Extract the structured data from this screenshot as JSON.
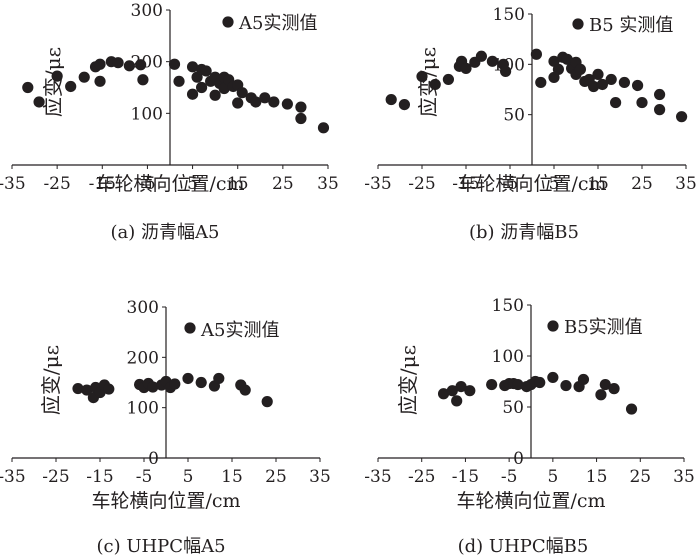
{
  "chart_data": [
    {
      "type": "scatter",
      "caption": "(a) 沥青幅A5",
      "xlabel": "车轮横向位置/cm",
      "ylabel": "应变/με",
      "xlim": [
        -35,
        35
      ],
      "ylim": [
        0,
        300
      ],
      "xticks": [
        -35,
        -25,
        -15,
        -5,
        5,
        15,
        25,
        35
      ],
      "yticks": [
        100,
        200,
        300
      ],
      "grid": false,
      "legend_position": "top-right",
      "series": [
        {
          "name": "A5实测值",
          "points": [
            [
              -31.5,
              150
            ],
            [
              -29,
              122
            ],
            [
              -25,
              172
            ],
            [
              -22,
              152
            ],
            [
              -19,
              170
            ],
            [
              -16.5,
              190
            ],
            [
              -15.5,
              195
            ],
            [
              -15.5,
              162
            ],
            [
              -13,
              200
            ],
            [
              -11.5,
              198
            ],
            [
              -9,
              192
            ],
            [
              -6.5,
              194
            ],
            [
              -6,
              165
            ],
            [
              1,
              195
            ],
            [
              2,
              162
            ],
            [
              5,
              190
            ],
            [
              5,
              137
            ],
            [
              6,
              170
            ],
            [
              7,
              185
            ],
            [
              7,
              150
            ],
            [
              8,
              182
            ],
            [
              9,
              162
            ],
            [
              10,
              170
            ],
            [
              10,
              135
            ],
            [
              11,
              158
            ],
            [
              12,
              170
            ],
            [
              12,
              148
            ],
            [
              13,
              165
            ],
            [
              14,
              152
            ],
            [
              15,
              155
            ],
            [
              15,
              120
            ],
            [
              16,
              140
            ],
            [
              18,
              130
            ],
            [
              19,
              122
            ],
            [
              21,
              130
            ],
            [
              23,
              122
            ],
            [
              26,
              118
            ],
            [
              29,
              112
            ],
            [
              29,
              90
            ],
            [
              34,
              72
            ]
          ]
        }
      ]
    },
    {
      "type": "scatter",
      "caption": "(b) 沥青幅B5",
      "xlabel": "车轮横向位置/cm",
      "ylabel": "应变/με",
      "xlim": [
        -35,
        35
      ],
      "ylim": [
        0,
        150
      ],
      "xticks": [
        -35,
        -25,
        -15,
        -5,
        5,
        15,
        25,
        35
      ],
      "yticks": [
        50,
        100,
        150
      ],
      "grid": false,
      "legend_position": "top-right",
      "series": [
        {
          "name": "B5 实测值",
          "points": [
            [
              -32,
              65
            ],
            [
              -29,
              60
            ],
            [
              -25,
              88
            ],
            [
              -22,
              80
            ],
            [
              -19,
              85
            ],
            [
              -16.5,
              98
            ],
            [
              -16,
              103
            ],
            [
              -15,
              96
            ],
            [
              -13,
              102
            ],
            [
              -11.5,
              108
            ],
            [
              -9,
              103
            ],
            [
              -6.5,
              100
            ],
            [
              -6,
              93
            ],
            [
              1,
              110
            ],
            [
              2,
              82
            ],
            [
              5,
              103
            ],
            [
              5,
              87
            ],
            [
              6,
              95
            ],
            [
              7,
              107
            ],
            [
              8,
              105
            ],
            [
              9,
              96
            ],
            [
              10,
              102
            ],
            [
              10,
              90
            ],
            [
              11,
              95
            ],
            [
              12,
              83
            ],
            [
              13,
              85
            ],
            [
              14,
              78
            ],
            [
              15,
              90
            ],
            [
              16,
              80
            ],
            [
              18,
              85
            ],
            [
              19,
              62
            ],
            [
              21,
              82
            ],
            [
              24,
              79
            ],
            [
              25,
              62
            ],
            [
              29,
              70
            ],
            [
              29,
              55
            ],
            [
              34,
              48
            ]
          ]
        }
      ]
    },
    {
      "type": "scatter",
      "caption": "(c) UHPC幅A5",
      "xlabel": "车轮横向位置/cm",
      "ylabel": "应变/με",
      "xlim": [
        -35,
        35
      ],
      "ylim": [
        0,
        300
      ],
      "xticks": [
        -35,
        -25,
        -15,
        -5,
        5,
        15,
        25,
        35
      ],
      "yticks": [
        0,
        100,
        200,
        300
      ],
      "grid": false,
      "legend_position": "top-right",
      "series": [
        {
          "name": "A5实测值",
          "points": [
            [
              -20,
              138
            ],
            [
              -18,
              135
            ],
            [
              -16.5,
              120
            ],
            [
              -16,
              140
            ],
            [
              -15,
              130
            ],
            [
              -14,
              145
            ],
            [
              -13,
              137
            ],
            [
              -6,
              146
            ],
            [
              -5,
              140
            ],
            [
              -4,
              148
            ],
            [
              -3,
              141
            ],
            [
              -1,
              145
            ],
            [
              0,
              152
            ],
            [
              1,
              140
            ],
            [
              2,
              147
            ],
            [
              5,
              158
            ],
            [
              8,
              150
            ],
            [
              11,
              143
            ],
            [
              12,
              158
            ],
            [
              17,
              145
            ],
            [
              18,
              135
            ],
            [
              23,
              112
            ]
          ]
        }
      ]
    },
    {
      "type": "scatter",
      "caption": "(d) UHPC幅B5",
      "xlabel": "车轮横向位置/cm",
      "ylabel": "应变/με",
      "xlim": [
        -35,
        35
      ],
      "ylim": [
        0,
        150
      ],
      "xticks": [
        -35,
        -25,
        -15,
        -5,
        5,
        15,
        25,
        35
      ],
      "yticks": [
        0,
        50,
        100,
        150
      ],
      "grid": false,
      "legend_position": "top-right",
      "series": [
        {
          "name": "B5实测值",
          "points": [
            [
              -20,
              63
            ],
            [
              -18,
              66
            ],
            [
              -17,
              56
            ],
            [
              -16,
              70
            ],
            [
              -14,
              66
            ],
            [
              -9,
              72
            ],
            [
              -6,
              71
            ],
            [
              -5,
              73
            ],
            [
              -4,
              73
            ],
            [
              -3,
              72
            ],
            [
              -1,
              70
            ],
            [
              0,
              72
            ],
            [
              1,
              75
            ],
            [
              2,
              74
            ],
            [
              5,
              79
            ],
            [
              8,
              71
            ],
            [
              11,
              70
            ],
            [
              12,
              77
            ],
            [
              16,
              62
            ],
            [
              17,
              72
            ],
            [
              19,
              68
            ],
            [
              23,
              48
            ]
          ]
        }
      ]
    }
  ]
}
